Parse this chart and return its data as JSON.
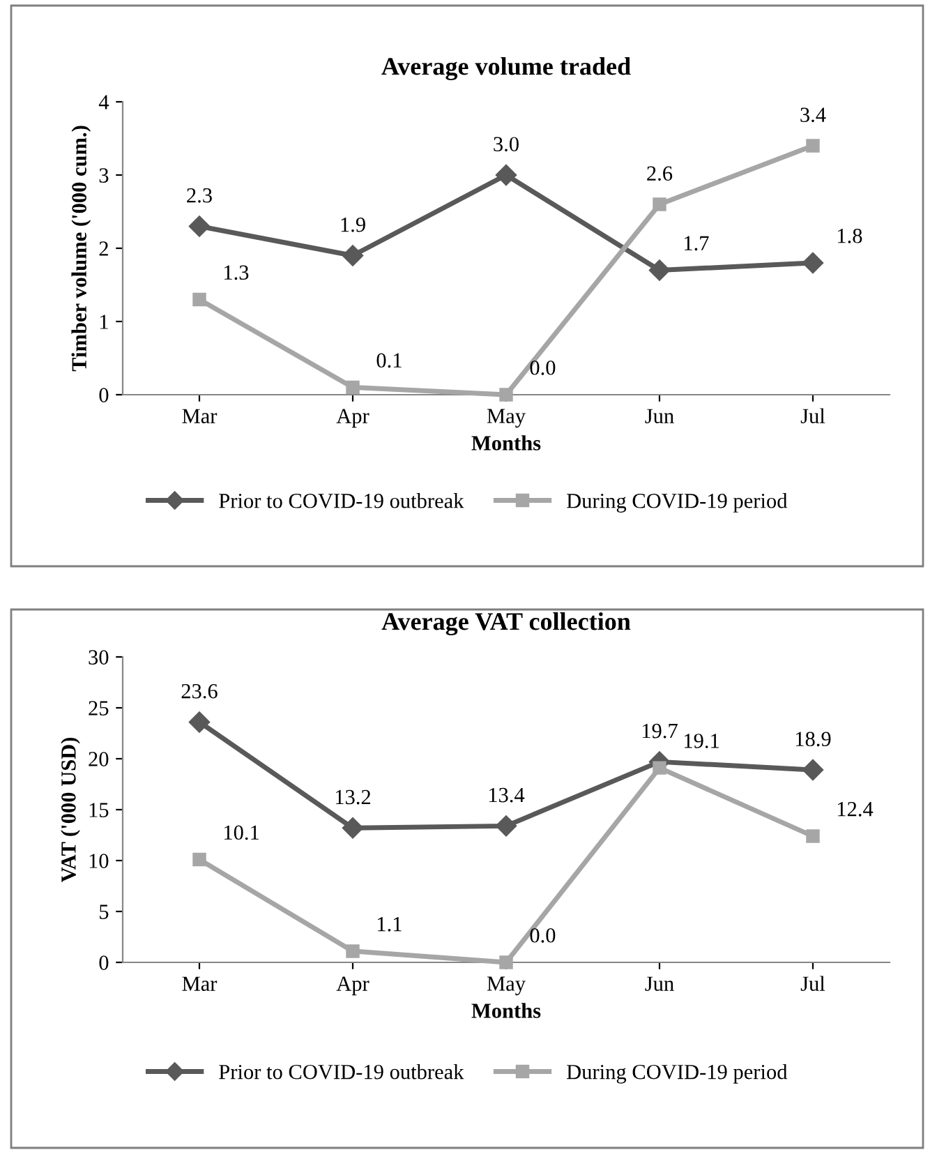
{
  "chart_data": [
    {
      "type": "line",
      "title": "Average volume traded",
      "xlabel": "Months",
      "ylabel": "Timber volume ('000 cum.)",
      "categories": [
        "Mar",
        "Apr",
        "May",
        "Jun",
        "Jul"
      ],
      "ylim": [
        0,
        4
      ],
      "yticks": [
        0,
        1,
        2,
        3,
        4
      ],
      "grid": false,
      "legend": "bottom",
      "series": [
        {
          "name": "Prior to COVID-19 outbreak",
          "color": "#595959",
          "marker": "diamond",
          "values": [
            2.3,
            1.9,
            3.0,
            1.7,
            1.8
          ],
          "value_labels": [
            "2.3",
            "1.9",
            "3.0",
            "1.7",
            "1.8"
          ]
        },
        {
          "name": "During COVID-19 period",
          "color": "#a6a6a6",
          "marker": "square",
          "values": [
            1.3,
            0.1,
            0.0,
            2.6,
            3.4
          ],
          "value_labels": [
            "1.3",
            "0.1",
            "0.0",
            "2.6",
            "3.4"
          ]
        }
      ]
    },
    {
      "type": "line",
      "title": "Average VAT collection",
      "xlabel": "Months",
      "ylabel": "VAT ('000 USD)",
      "categories": [
        "Mar",
        "Apr",
        "May",
        "Jun",
        "Jul"
      ],
      "ylim": [
        0,
        30
      ],
      "yticks": [
        0,
        5,
        10,
        15,
        20,
        25,
        30
      ],
      "grid": false,
      "legend": "bottom",
      "series": [
        {
          "name": "Prior to COVID-19 outbreak",
          "color": "#595959",
          "marker": "diamond",
          "values": [
            23.6,
            13.2,
            13.4,
            19.7,
            18.9
          ],
          "value_labels": [
            "23.6",
            "13.2",
            "13.4",
            "19.7",
            "18.9"
          ]
        },
        {
          "name": "During COVID-19 period",
          "color": "#a6a6a6",
          "marker": "square",
          "values": [
            10.1,
            1.1,
            0.0,
            19.1,
            12.4
          ],
          "value_labels": [
            "10.1",
            "1.1",
            "0.0",
            "19.1",
            "12.4"
          ]
        }
      ]
    }
  ]
}
